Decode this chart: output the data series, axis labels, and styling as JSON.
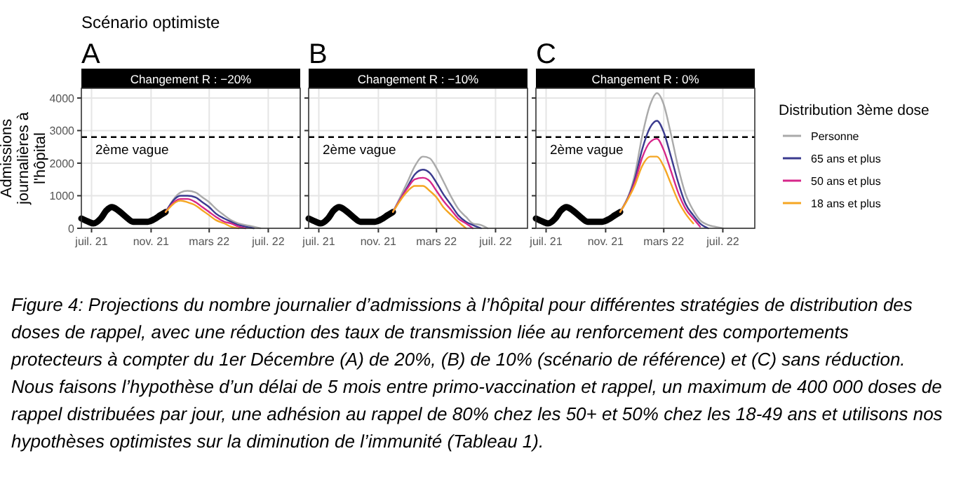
{
  "chart_data": [
    {
      "type": "line",
      "title": "A",
      "subtitle": "Changement R : −20%",
      "ylabel": "Admissions journalières à l'hôpital",
      "annotations": [
        "Scénario optimiste",
        "Figure 4: Projections du nombre journalier d’admissions à l’hôpital pour différentes stratégies de distribution des doses de rappel, avec une réduction des taux de transmission liée au renforcement des comportements protecteurs à compter du 1er Décembre (A) de 20%, (B) de 10% (scénario de référence) et (C) sans réduction. Nous faisons l’hypothèse d’un délai de 5 mois entre primo-vaccination et rappel, un maximum de 400 000 doses de rappel distribuées par jour, une adhésion au rappel de 80% chez les 50+ et 50% chez les 18-49 ans et utilisons nos hypothèses optimistes sur la diminution de l’immunité (Tableau 1)."
      ],
      "xlim": [
        "2021-06-10",
        "2022-09-05"
      ],
      "xticks": [
        {
          "value": "2021-07-01",
          "label": "juil. 21"
        },
        {
          "value": "2021-11-01",
          "label": "nov. 21"
        },
        {
          "value": "2022-03-01",
          "label": "mars 22"
        },
        {
          "value": "2022-07-01",
          "label": "juil. 22"
        }
      ],
      "ylim": [
        0,
        4300
      ],
      "yticks": [
        0,
        1000,
        2000,
        3000,
        4000
      ],
      "grid": true,
      "ref_lines": [
        {
          "axis": "y",
          "value": 2800,
          "label": "2ème vague",
          "line_style": "dashed",
          "color": "#000000"
        }
      ],
      "series": [
        {
          "color": "#000000",
          "x": [
            "2021-06-10",
            "2021-06-25",
            "2021-07-05",
            "2021-07-20",
            "2021-08-01",
            "2021-08-12",
            "2021-08-25",
            "2021-09-10",
            "2021-09-25",
            "2021-10-10",
            "2021-10-25",
            "2021-11-10",
            "2021-11-20",
            "2021-12-01"
          ],
          "values": [
            300,
            200,
            150,
            300,
            550,
            650,
            550,
            350,
            200,
            200,
            200,
            300,
            400,
            500
          ]
        },
        {
          "color": "#aaaaaa",
          "x": [
            "2021-12-01",
            "2022-01-01",
            "2022-01-15",
            "2022-02-01",
            "2022-02-15",
            "2022-03-01",
            "2022-03-15",
            "2022-04-01",
            "2022-04-15",
            "2022-05-01",
            "2022-05-15",
            "2022-06-01",
            "2022-06-15"
          ],
          "values": [
            500,
            1100,
            1150,
            1100,
            950,
            800,
            600,
            400,
            250,
            150,
            100,
            50,
            0
          ]
        },
        {
          "color": "#3b3b8f",
          "x": [
            "2021-12-01",
            "2022-01-01",
            "2022-01-15",
            "2022-02-01",
            "2022-02-15",
            "2022-03-01",
            "2022-03-15",
            "2022-04-01",
            "2022-04-15",
            "2022-05-01",
            "2022-05-15",
            "2022-06-01"
          ],
          "values": [
            500,
            1000,
            1000,
            950,
            800,
            650,
            450,
            300,
            200,
            100,
            50,
            0
          ]
        },
        {
          "color": "#d6278a",
          "x": [
            "2021-12-01",
            "2022-01-01",
            "2022-01-15",
            "2022-02-01",
            "2022-02-15",
            "2022-03-01",
            "2022-03-15",
            "2022-04-01",
            "2022-04-15",
            "2022-05-01",
            "2022-05-15"
          ],
          "values": [
            500,
            900,
            900,
            800,
            650,
            500,
            350,
            200,
            150,
            50,
            0
          ]
        },
        {
          "color": "#f5a623",
          "x": [
            "2021-12-01",
            "2022-01-01",
            "2022-01-15",
            "2022-02-01",
            "2022-02-15",
            "2022-03-01",
            "2022-03-15",
            "2022-04-01",
            "2022-04-15",
            "2022-05-01"
          ],
          "values": [
            500,
            850,
            800,
            700,
            550,
            400,
            250,
            150,
            50,
            0
          ]
        }
      ]
    },
    {
      "type": "line",
      "title": "B",
      "subtitle": "Changement R : −10%",
      "tick_labels": "x",
      "xlim": [
        "2021-06-10",
        "2022-09-05"
      ],
      "xticks": [
        {
          "value": "2021-07-01",
          "label": "juil. 21"
        },
        {
          "value": "2021-11-01",
          "label": "nov. 21"
        },
        {
          "value": "2022-03-01",
          "label": "mars 22"
        },
        {
          "value": "2022-07-01",
          "label": "juil. 22"
        }
      ],
      "ylim": [
        0,
        4300
      ],
      "yticks": [
        0,
        1000,
        2000,
        3000,
        4000
      ],
      "grid": true,
      "ref_lines": [
        {
          "axis": "y",
          "value": 2800,
          "label": "2ème vague",
          "line_style": "dashed",
          "color": "#000000"
        }
      ],
      "series": [
        {
          "color": "#000000",
          "x": [
            "2021-06-10",
            "2021-06-25",
            "2021-07-05",
            "2021-07-20",
            "2021-08-01",
            "2021-08-12",
            "2021-08-25",
            "2021-09-10",
            "2021-09-25",
            "2021-10-10",
            "2021-10-25",
            "2021-11-10",
            "2021-11-20",
            "2021-12-01"
          ],
          "values": [
            300,
            200,
            150,
            300,
            550,
            650,
            550,
            350,
            200,
            200,
            200,
            300,
            400,
            500
          ]
        },
        {
          "color": "#aaaaaa",
          "x": [
            "2021-12-01",
            "2022-01-01",
            "2022-01-15",
            "2022-02-01",
            "2022-02-15",
            "2022-03-01",
            "2022-03-15",
            "2022-04-01",
            "2022-04-15",
            "2022-05-01",
            "2022-05-15",
            "2022-06-01",
            "2022-06-15"
          ],
          "values": [
            500,
            1450,
            1900,
            2200,
            2150,
            1850,
            1450,
            950,
            600,
            350,
            150,
            100,
            0
          ]
        },
        {
          "color": "#3b3b8f",
          "x": [
            "2021-12-01",
            "2022-01-01",
            "2022-01-15",
            "2022-02-01",
            "2022-02-15",
            "2022-03-01",
            "2022-03-15",
            "2022-04-01",
            "2022-04-15",
            "2022-05-01",
            "2022-05-15",
            "2022-06-01"
          ],
          "values": [
            500,
            1300,
            1650,
            1800,
            1700,
            1400,
            1050,
            700,
            400,
            200,
            100,
            0
          ]
        },
        {
          "color": "#d6278a",
          "x": [
            "2021-12-01",
            "2022-01-01",
            "2022-01-15",
            "2022-02-01",
            "2022-02-15",
            "2022-03-01",
            "2022-03-15",
            "2022-04-01",
            "2022-04-15",
            "2022-05-01",
            "2022-05-15"
          ],
          "values": [
            500,
            1250,
            1500,
            1550,
            1450,
            1150,
            850,
            550,
            300,
            150,
            0
          ]
        },
        {
          "color": "#f5a623",
          "x": [
            "2021-12-01",
            "2022-01-01",
            "2022-01-15",
            "2022-02-01",
            "2022-02-15",
            "2022-03-01",
            "2022-03-15",
            "2022-04-01",
            "2022-04-15",
            "2022-05-01"
          ],
          "values": [
            500,
            1150,
            1300,
            1300,
            1150,
            950,
            650,
            400,
            200,
            0
          ]
        }
      ]
    },
    {
      "type": "line",
      "title": "C",
      "subtitle": "Changement R : 0%",
      "tick_labels": "x",
      "legend": "right",
      "legend_title": "Distribution 3ème dose",
      "xlim": [
        "2021-06-10",
        "2022-09-05"
      ],
      "xticks": [
        {
          "value": "2021-07-01",
          "label": "juil. 21"
        },
        {
          "value": "2021-11-01",
          "label": "nov. 21"
        },
        {
          "value": "2022-03-01",
          "label": "mars 22"
        },
        {
          "value": "2022-07-01",
          "label": "juil. 22"
        }
      ],
      "ylim": [
        0,
        4300
      ],
      "yticks": [
        0,
        1000,
        2000,
        3000,
        4000
      ],
      "grid": true,
      "ref_lines": [
        {
          "axis": "y",
          "value": 2800,
          "label": "2ème vague",
          "line_style": "dashed",
          "color": "#000000"
        }
      ],
      "series": [
        {
          "color": "#000000",
          "x": [
            "2021-06-10",
            "2021-06-25",
            "2021-07-05",
            "2021-07-20",
            "2021-08-01",
            "2021-08-12",
            "2021-08-25",
            "2021-09-10",
            "2021-09-25",
            "2021-10-10",
            "2021-10-25",
            "2021-11-10",
            "2021-11-20",
            "2021-12-01"
          ],
          "values": [
            300,
            200,
            150,
            300,
            550,
            650,
            550,
            350,
            200,
            200,
            200,
            300,
            400,
            500
          ]
        },
        {
          "name": "Personne",
          "color": "#aaaaaa",
          "x": [
            "2021-12-01",
            "2022-01-01",
            "2022-01-15",
            "2022-02-01",
            "2022-02-15",
            "2022-03-01",
            "2022-03-15",
            "2022-04-01",
            "2022-04-15",
            "2022-05-01",
            "2022-05-15",
            "2022-06-01",
            "2022-06-15",
            "2022-07-01"
          ],
          "values": [
            500,
            1700,
            2800,
            3800,
            4150,
            3800,
            2950,
            1800,
            1050,
            550,
            250,
            100,
            50,
            0
          ]
        },
        {
          "name": "65 ans et plus",
          "color": "#3b3b8f",
          "x": [
            "2021-12-01",
            "2022-01-01",
            "2022-01-15",
            "2022-02-01",
            "2022-02-15",
            "2022-03-01",
            "2022-03-15",
            "2022-04-01",
            "2022-04-15",
            "2022-05-01",
            "2022-05-15",
            "2022-06-01"
          ],
          "values": [
            500,
            1550,
            2400,
            3100,
            3300,
            2950,
            2250,
            1350,
            750,
            400,
            150,
            0
          ]
        },
        {
          "name": "50 ans et plus",
          "color": "#d6278a",
          "x": [
            "2021-12-01",
            "2022-01-01",
            "2022-01-15",
            "2022-02-01",
            "2022-02-15",
            "2022-03-01",
            "2022-03-15",
            "2022-04-01",
            "2022-04-15",
            "2022-05-01",
            "2022-05-15"
          ],
          "values": [
            500,
            1450,
            2150,
            2650,
            2750,
            2400,
            1800,
            1050,
            600,
            300,
            50
          ]
        },
        {
          "name": "18 ans et plus",
          "color": "#f5a623",
          "x": [
            "2021-12-01",
            "2022-01-01",
            "2022-01-15",
            "2022-02-01",
            "2022-02-15",
            "2022-03-01",
            "2022-03-15",
            "2022-04-01",
            "2022-04-15",
            "2022-05-01"
          ],
          "values": [
            500,
            1350,
            1900,
            2200,
            2200,
            1900,
            1400,
            800,
            450,
            150
          ]
        }
      ]
    }
  ]
}
